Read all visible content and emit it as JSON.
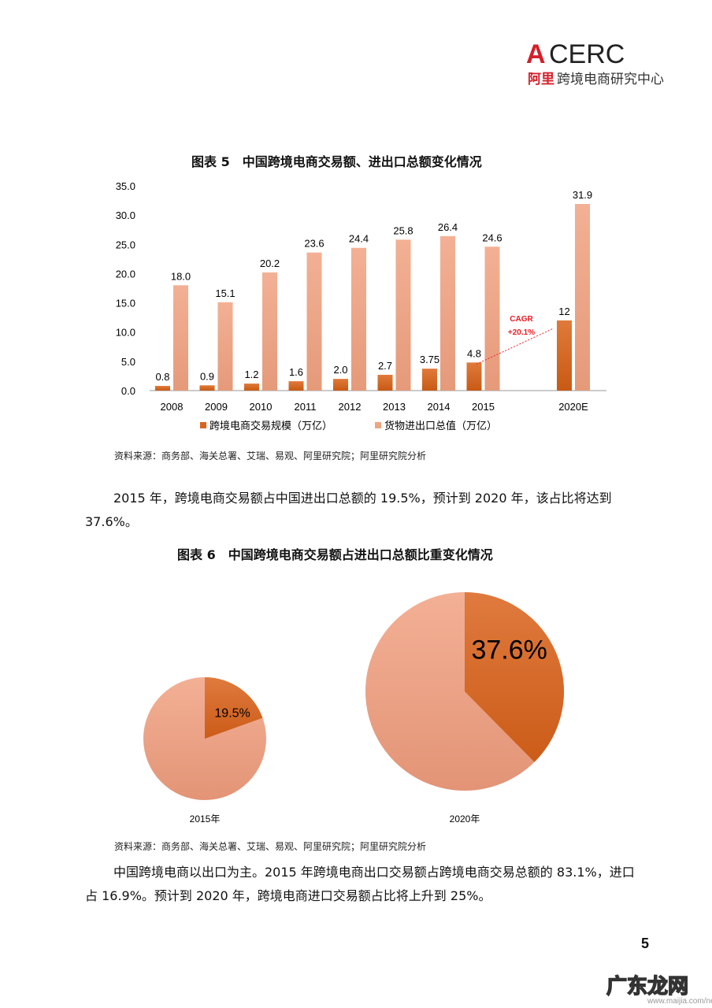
{
  "logo": {
    "brand": "ACERC",
    "line1_red": "阿里",
    "line1_rest": "跨境电商研究中心"
  },
  "figure5": {
    "caption": "图表 5　中国跨境电商交易额、进出口总额变化情况",
    "source": "资料来源：商务部、海关总署、艾瑞、易观、阿里研究院；阿里研究院分析"
  },
  "chart_data": [
    {
      "type": "bar",
      "categories": [
        "2008",
        "2009",
        "2010",
        "2011",
        "2012",
        "2013",
        "2014",
        "2015",
        "2020E"
      ],
      "series": [
        {
          "name": "跨境电商交易规模（万亿）",
          "values": [
            0.8,
            0.9,
            1.2,
            1.6,
            2.0,
            2.7,
            3.75,
            4.8,
            12
          ],
          "labels": [
            "0.8",
            "0.9",
            "1.2",
            "1.6",
            "2.0",
            "2.7",
            "3.75",
            "4.8",
            "12"
          ],
          "color": "#d9651f"
        },
        {
          "name": "货物进出口总值（万亿）",
          "values": [
            18.0,
            15.1,
            20.2,
            23.6,
            24.4,
            25.8,
            26.4,
            24.6,
            31.9
          ],
          "labels": [
            "18.0",
            "15.1",
            "20.2",
            "23.6",
            "24.4",
            "25.8",
            "26.4",
            "24.6",
            "31.9"
          ],
          "color": "#f0a582"
        }
      ],
      "ylim": [
        0,
        35
      ],
      "yticks": [
        "0.0",
        "5.0",
        "10.0",
        "15.0",
        "20.0",
        "25.0",
        "30.0",
        "35.0"
      ],
      "annotation": {
        "line1": "CAGR",
        "line2": "+20.1%",
        "color": "#ee1c24"
      },
      "legend": "bottom",
      "grid": false
    },
    {
      "type": "pie",
      "charts": [
        {
          "label": "2015年",
          "share": 19.5,
          "share_label": "19.5%"
        },
        {
          "label": "2020年",
          "share": 37.6,
          "share_label": "37.6%"
        }
      ],
      "colors": {
        "share": "#d9651f",
        "rest": "#f0a582"
      }
    }
  ],
  "para1": "2015 年，跨境电商交易额占中国进出口总额的 19.5%，预计到 2020 年，该占比将达到 37.6%。",
  "figure6": {
    "caption": "图表 6　中国跨境电商交易额占进出口总额比重变化情况",
    "source": "资料来源：商务部、海关总署、艾瑞、易观、阿里研究院；阿里研究院分析"
  },
  "para2": "中国跨境电商以出口为主。2015 年跨境电商出口交易额占跨境电商交易总额的 83.1%，进口占 16.9%。预计到 2020 年，跨境电商进口交易额占比将上升到 25%。",
  "page_number": "5",
  "watermark": {
    "text": "广东龙网",
    "url": "www.maijia.com/news"
  }
}
